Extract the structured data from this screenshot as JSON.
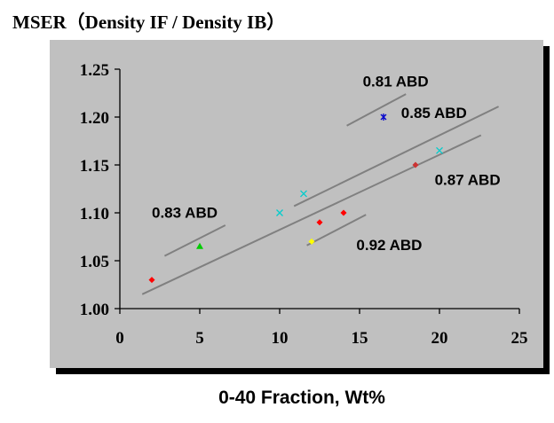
{
  "chart_data": {
    "type": "scatter",
    "title": "MSER（Density IF / Density IB）",
    "xlabel": "0-40 Fraction, Wt%",
    "ylabel": "",
    "xlim": [
      0,
      25
    ],
    "ylim": [
      1.0,
      1.25
    ],
    "x_ticks": [
      "0",
      "5",
      "10",
      "15",
      "20",
      "25"
    ],
    "y_ticks": [
      "1.00",
      "1.05",
      "1.10",
      "1.15",
      "1.20",
      "1.25"
    ],
    "grid": false,
    "legend": "none",
    "background_color": "#c0c0c0",
    "points": [
      {
        "x": 2.0,
        "y": 1.03,
        "marker": "diamond",
        "color": "#ff0000"
      },
      {
        "x": 5.0,
        "y": 1.065,
        "marker": "triangle",
        "color": "#00cc00"
      },
      {
        "x": 10.0,
        "y": 1.1,
        "marker": "x",
        "color": "#00cccc"
      },
      {
        "x": 11.5,
        "y": 1.12,
        "marker": "x",
        "color": "#00cccc"
      },
      {
        "x": 12.0,
        "y": 1.07,
        "marker": "diamond",
        "color": "#ffff00"
      },
      {
        "x": 12.5,
        "y": 1.09,
        "marker": "diamond",
        "color": "#ff0000"
      },
      {
        "x": 14.0,
        "y": 1.1,
        "marker": "diamond",
        "color": "#ff0000"
      },
      {
        "x": 16.5,
        "y": 1.2,
        "marker": "star",
        "color": "#0000cc"
      },
      {
        "x": 18.5,
        "y": 1.15,
        "marker": "diamond",
        "color": "#cc3333"
      },
      {
        "x": 20.0,
        "y": 1.165,
        "marker": "x",
        "color": "#00cccc"
      }
    ],
    "lines": [
      {
        "x1": 1.4,
        "y1": 1.015,
        "x2": 22.6,
        "y2": 1.181,
        "color": "#808080"
      },
      {
        "x1": 10.9,
        "y1": 1.107,
        "x2": 23.7,
        "y2": 1.211,
        "color": "#808080"
      },
      {
        "x1": 2.8,
        "y1": 1.055,
        "x2": 6.6,
        "y2": 1.087,
        "color": "#808080"
      },
      {
        "x1": 14.2,
        "y1": 1.191,
        "x2": 17.9,
        "y2": 1.224,
        "color": "#808080"
      },
      {
        "x1": 11.7,
        "y1": 1.066,
        "x2": 15.4,
        "y2": 1.098,
        "color": "#808080"
      }
    ],
    "annotations": [
      {
        "text": "0.81 ABD",
        "x": 15.2,
        "y": 1.232
      },
      {
        "text": "0.85 ABD",
        "x": 17.6,
        "y": 1.199
      },
      {
        "text": "0.87 ABD",
        "x": 19.7,
        "y": 1.129
      },
      {
        "text": "0.83 ABD",
        "x": 2.0,
        "y": 1.095
      },
      {
        "text": "0.92 ABD",
        "x": 14.8,
        "y": 1.061
      }
    ]
  }
}
